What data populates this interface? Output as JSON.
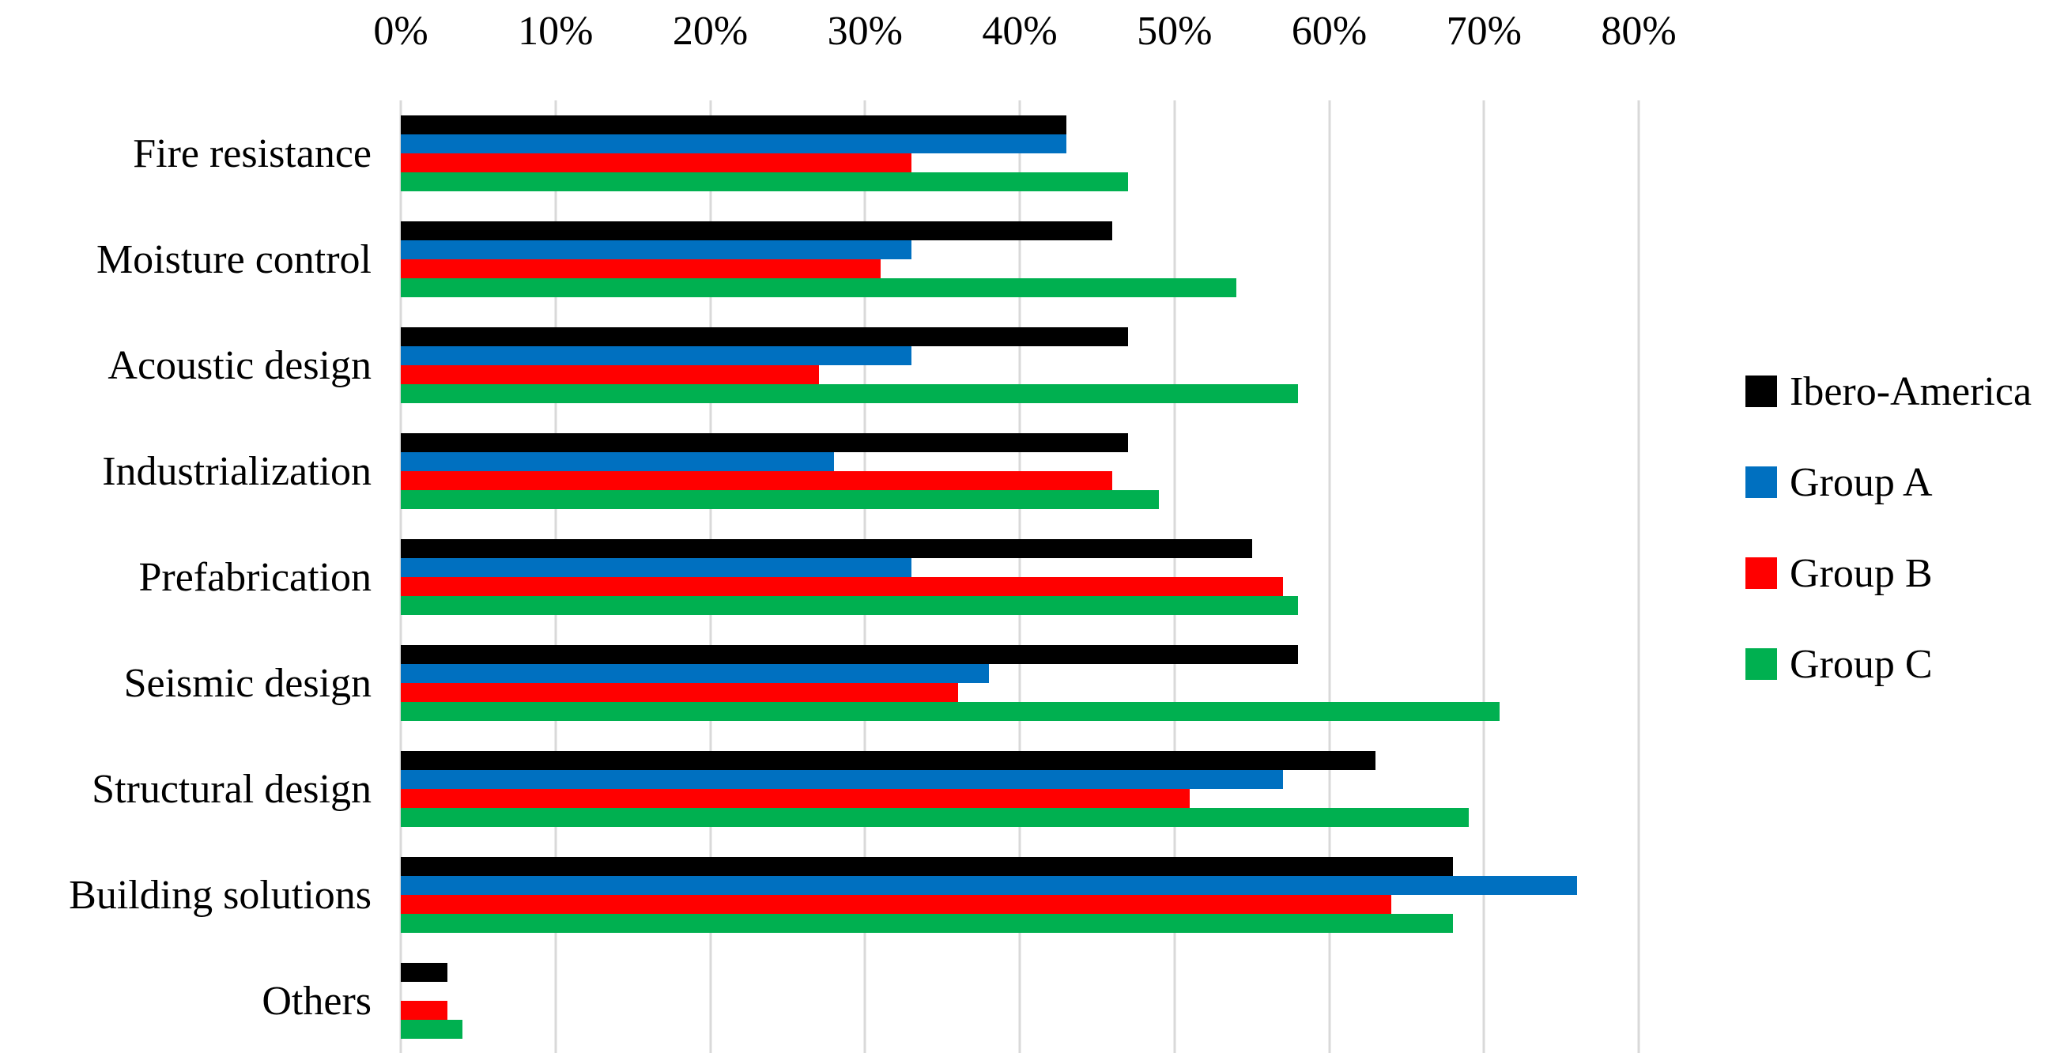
{
  "chart_data": {
    "type": "bar",
    "orientation": "horizontal",
    "title": "",
    "xlabel": "",
    "ylabel": "",
    "x_ticks": [
      "0%",
      "10%",
      "20%",
      "30%",
      "40%",
      "50%",
      "60%",
      "70%",
      "80%"
    ],
    "xlim": [
      0,
      80
    ],
    "grid": true,
    "gridline_color": "#d9d9d9",
    "background": "#ffffff",
    "legend_position": "right",
    "categories": [
      "Fire resistance",
      "Moisture control",
      "Acoustic design",
      "Industrialization",
      "Prefabrication",
      "Seismic design",
      "Structural design",
      "Building solutions",
      "Others"
    ],
    "series": [
      {
        "name": "Ibero-America",
        "color": "#000000",
        "values": [
          43,
          46,
          47,
          47,
          55,
          58,
          63,
          68,
          3
        ]
      },
      {
        "name": "Group A",
        "color": "#0070c0",
        "values": [
          43,
          33,
          33,
          28,
          33,
          38,
          57,
          76,
          0
        ]
      },
      {
        "name": "Group B",
        "color": "#ff0000",
        "values": [
          33,
          31,
          27,
          46,
          57,
          36,
          51,
          64,
          3
        ]
      },
      {
        "name": "Group C",
        "color": "#00b050",
        "values": [
          47,
          54,
          58,
          49,
          58,
          71,
          69,
          68,
          4
        ]
      }
    ]
  }
}
